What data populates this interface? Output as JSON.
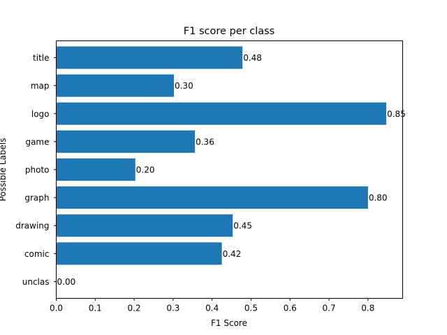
{
  "chart_data": {
    "type": "bar",
    "orientation": "horizontal",
    "title": "F1 score per class",
    "xlabel": "F1 Score",
    "ylabel": "Possible Labels",
    "categories": [
      "unclas",
      "comic",
      "drawing",
      "graph",
      "photo",
      "game",
      "logo",
      "map",
      "title"
    ],
    "values": [
      0.0,
      0.425,
      0.453,
      0.8,
      0.203,
      0.356,
      0.847,
      0.302,
      0.478
    ],
    "value_labels": [
      "0.00",
      "0.42",
      "0.45",
      "0.80",
      "0.20",
      "0.36",
      "0.85",
      "0.30",
      "0.48"
    ],
    "xlim": [
      0,
      0.889
    ],
    "xticks": [
      0.0,
      0.1,
      0.2,
      0.3,
      0.4,
      0.5,
      0.6,
      0.7,
      0.8
    ],
    "xtick_labels": [
      "0.0",
      "0.1",
      "0.2",
      "0.3",
      "0.4",
      "0.5",
      "0.6",
      "0.7",
      "0.8"
    ],
    "bar_color": "#1f77b4",
    "grid": false,
    "legend": "none"
  }
}
